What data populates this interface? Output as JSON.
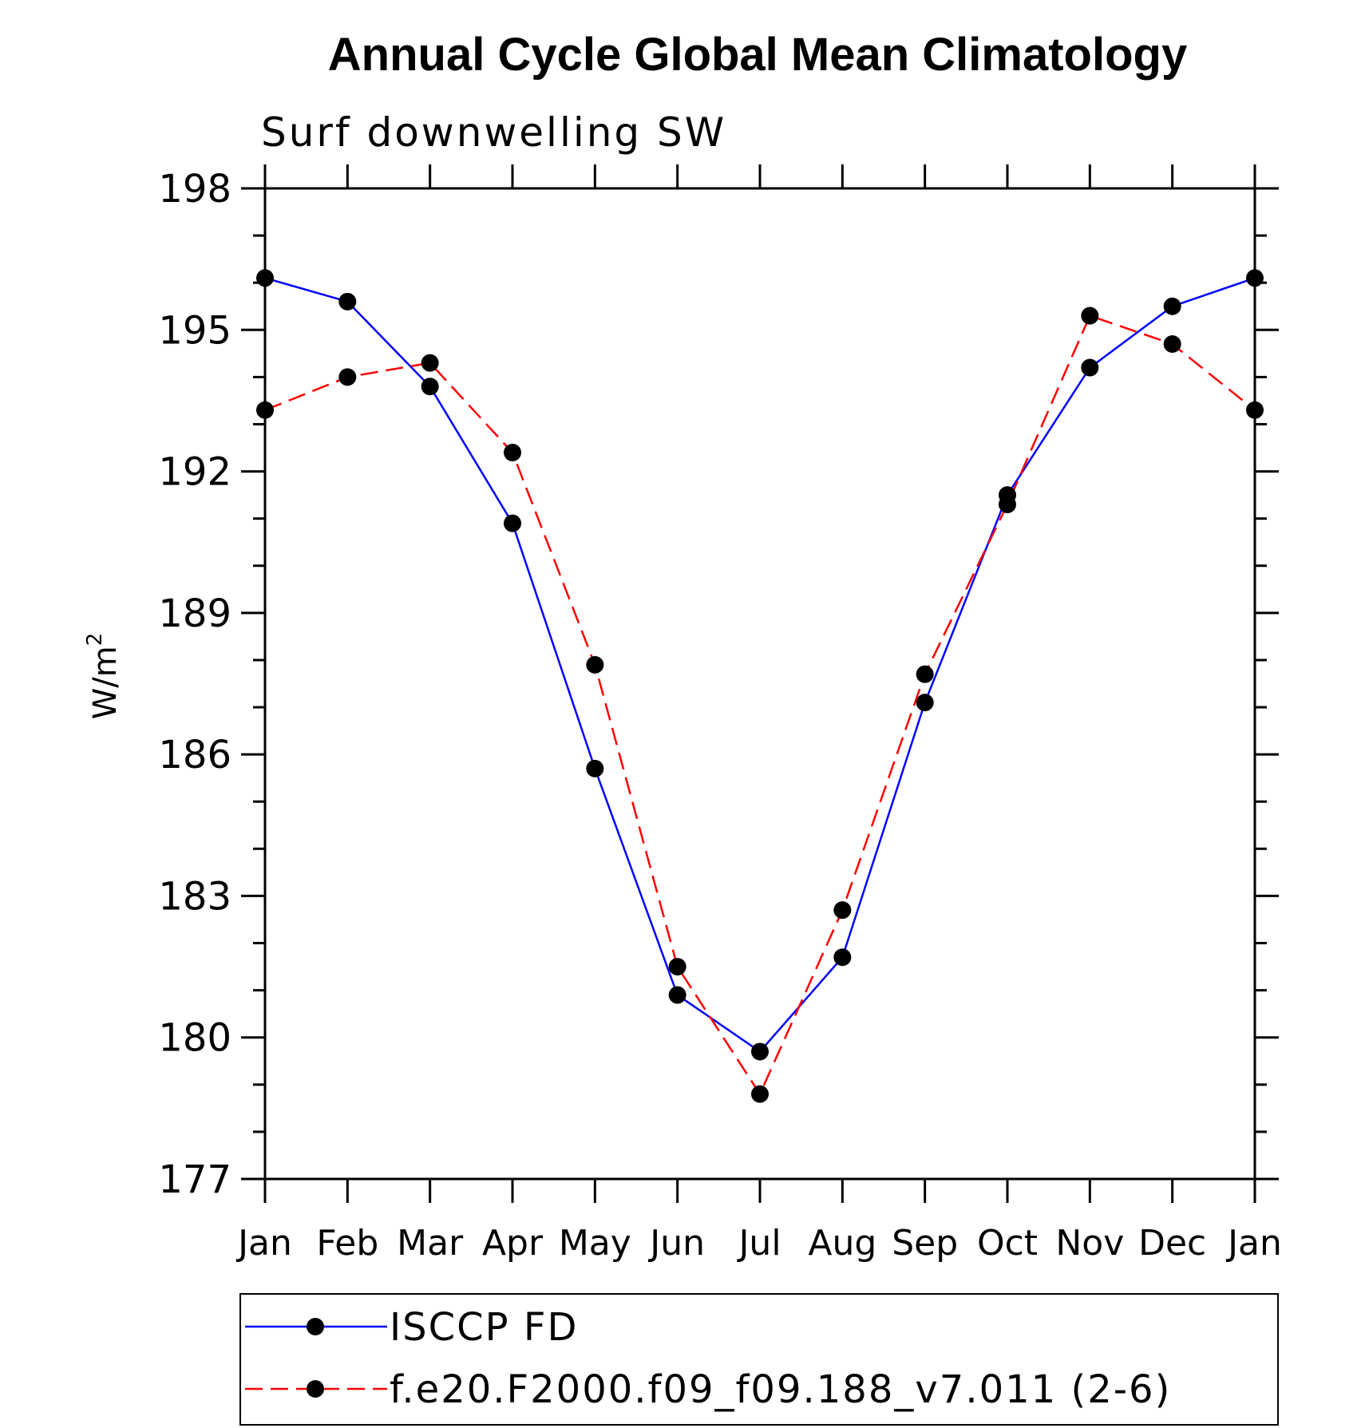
{
  "chart_data": {
    "type": "line",
    "title": "Annual Cycle Global Mean Climatology",
    "subtitle": "Surf downwelling SW",
    "ylabel": "W/m",
    "ylabel_superscript": "2",
    "xlabel": "",
    "categories": [
      "Jan",
      "Feb",
      "Mar",
      "Apr",
      "May",
      "Jun",
      "Jul",
      "Aug",
      "Sep",
      "Oct",
      "Nov",
      "Dec",
      "Jan"
    ],
    "ylim": [
      177,
      198
    ],
    "yticks": [
      177,
      180,
      183,
      186,
      189,
      192,
      195,
      198
    ],
    "yminor_step": 1,
    "legend_position": "bottom",
    "grid": false,
    "series": [
      {
        "name": "ISCCP FD",
        "color": "#0000ff",
        "style": "solid",
        "marker": "filled-circle",
        "values": [
          196.1,
          195.6,
          193.8,
          190.9,
          185.7,
          180.9,
          179.7,
          181.7,
          187.1,
          191.5,
          194.2,
          195.5,
          196.1
        ]
      },
      {
        "name": "f.e20.F2000.f09_f09.188_v7.011 (2-6)",
        "color": "#ff0000",
        "style": "dashed",
        "marker": "filled-circle",
        "values": [
          193.3,
          194.0,
          194.3,
          192.4,
          187.9,
          181.5,
          178.8,
          182.7,
          187.7,
          191.3,
          195.3,
          194.7,
          193.3
        ]
      }
    ]
  }
}
